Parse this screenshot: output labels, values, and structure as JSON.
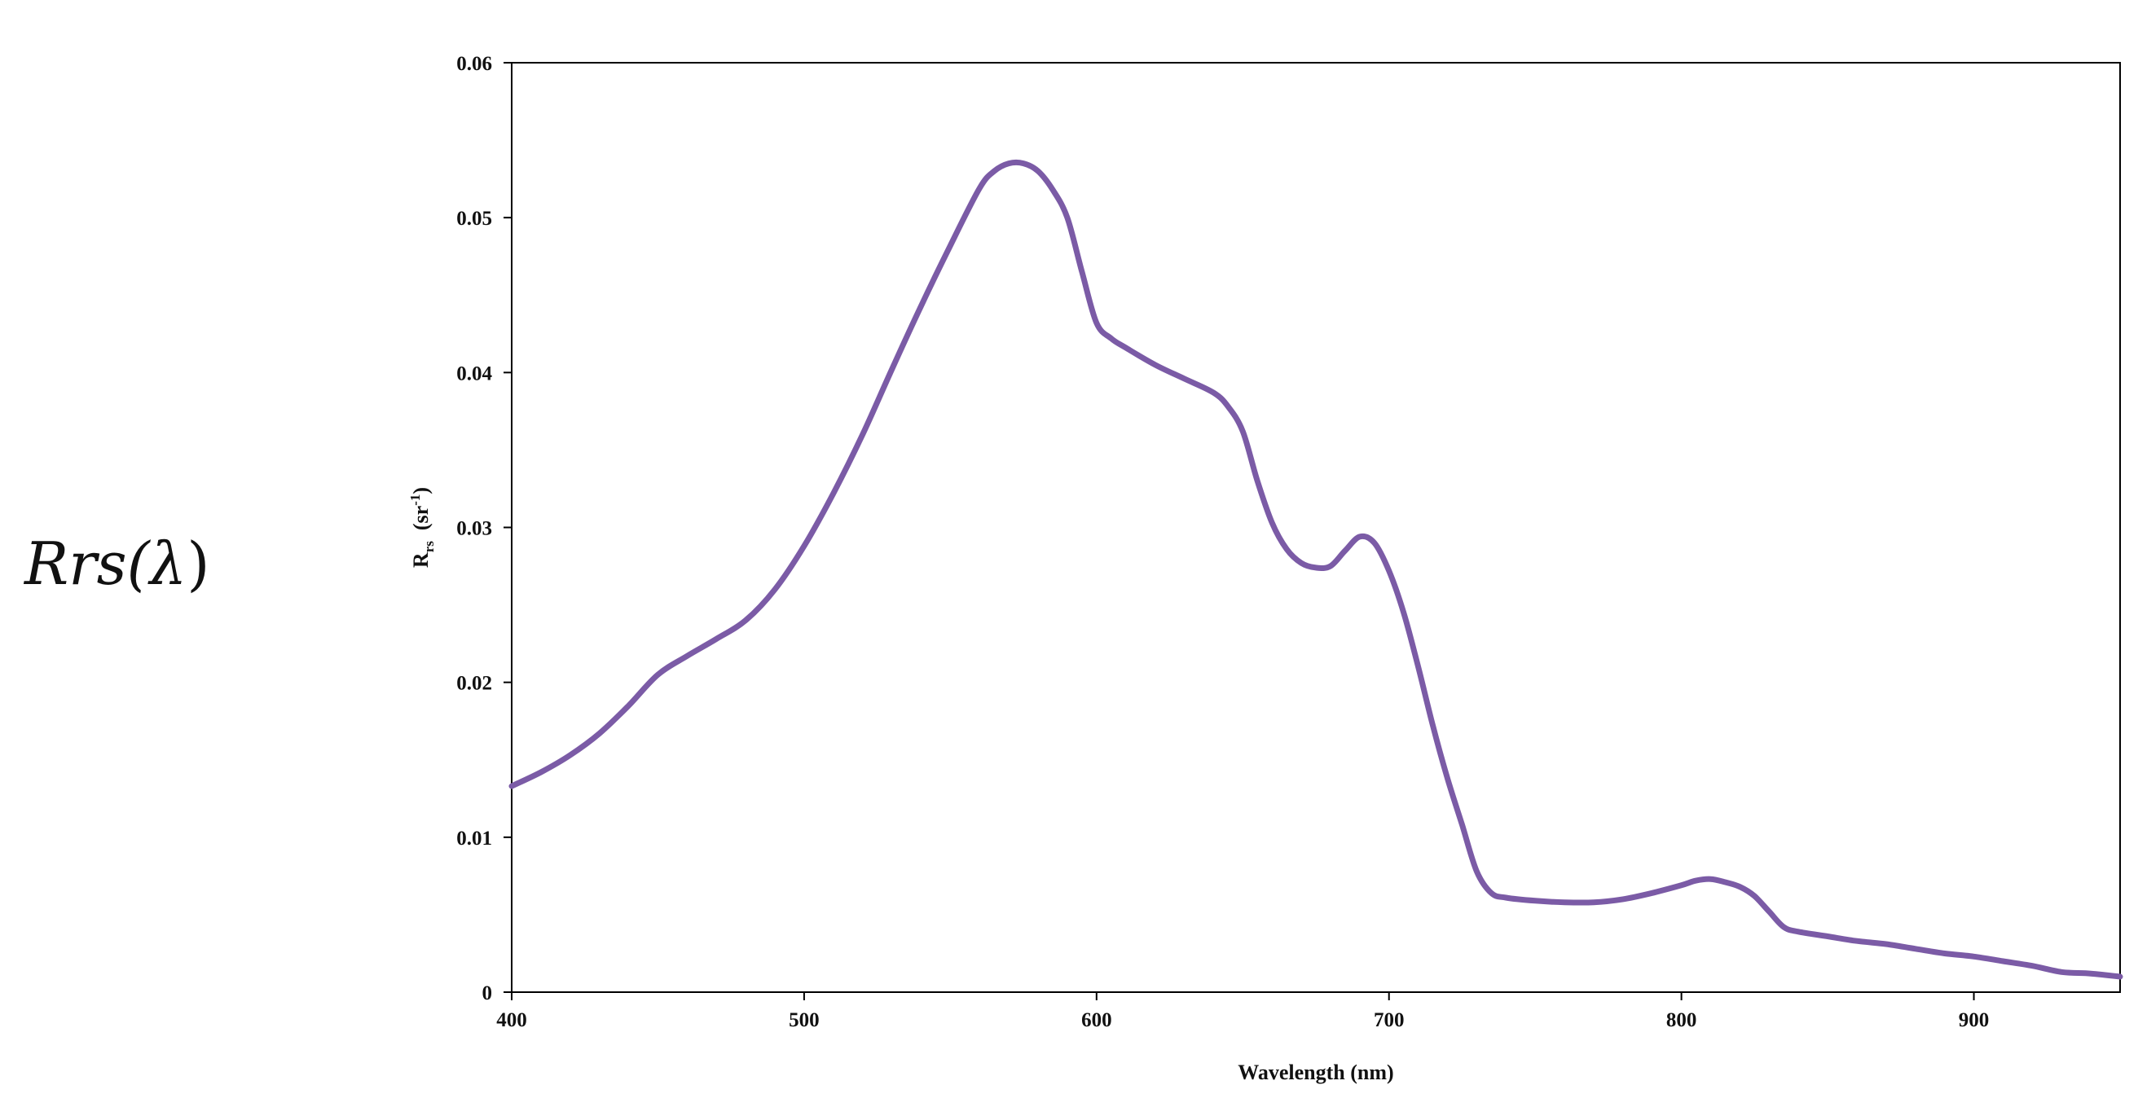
{
  "side_label": {
    "prefix": "Rrs(",
    "symbol": "λ",
    "suffix": ")"
  },
  "colors": {
    "series": "#7B5BA6",
    "axis": "#000000",
    "text": "#111111"
  },
  "chart_data": {
    "type": "line",
    "title": "",
    "xlabel": "Wavelength (nm)",
    "ylabel": {
      "main": "R",
      "sub": "rs",
      "unit_open": "  (sr",
      "unit_sup": "-1",
      "unit_close": ")"
    },
    "xlim": [
      400,
      950
    ],
    "ylim": [
      0,
      0.06
    ],
    "xticks": [
      400,
      500,
      600,
      700,
      800,
      900
    ],
    "yticks": [
      0,
      0.01,
      0.02,
      0.03,
      0.04,
      0.05,
      0.06
    ],
    "ytick_labels": [
      "0",
      "0.01",
      "0.02",
      "0.03",
      "0.04",
      "0.05",
      "0.06"
    ],
    "grid": false,
    "legend": "none",
    "series": [
      {
        "x": [
          400,
          410,
          420,
          430,
          440,
          450,
          460,
          470,
          480,
          490,
          500,
          510,
          520,
          530,
          540,
          550,
          560,
          565,
          570,
          575,
          580,
          585,
          590,
          595,
          600,
          605,
          610,
          620,
          630,
          640,
          645,
          650,
          655,
          660,
          665,
          670,
          675,
          680,
          685,
          690,
          695,
          700,
          705,
          710,
          715,
          720,
          725,
          730,
          735,
          740,
          750,
          760,
          770,
          780,
          790,
          800,
          805,
          810,
          815,
          820,
          825,
          830,
          835,
          840,
          850,
          860,
          870,
          880,
          890,
          900,
          910,
          920,
          930,
          940,
          950
        ],
        "y": [
          0.0133,
          0.0142,
          0.0153,
          0.0167,
          0.0185,
          0.0205,
          0.0217,
          0.0228,
          0.024,
          0.026,
          0.0288,
          0.0322,
          0.036,
          0.0402,
          0.0443,
          0.0482,
          0.0519,
          0.053,
          0.0535,
          0.0535,
          0.053,
          0.0518,
          0.05,
          0.0465,
          0.0432,
          0.0422,
          0.0416,
          0.0405,
          0.0396,
          0.0387,
          0.0378,
          0.0362,
          0.033,
          0.0303,
          0.0286,
          0.0277,
          0.0274,
          0.0275,
          0.0285,
          0.0294,
          0.029,
          0.0272,
          0.0245,
          0.021,
          0.0172,
          0.0138,
          0.0108,
          0.0078,
          0.0064,
          0.0061,
          0.0059,
          0.0058,
          0.0058,
          0.006,
          0.0064,
          0.0069,
          0.0072,
          0.0073,
          0.0071,
          0.0068,
          0.0062,
          0.0052,
          0.0042,
          0.0039,
          0.0036,
          0.0033,
          0.0031,
          0.0028,
          0.0025,
          0.0023,
          0.002,
          0.0017,
          0.0013,
          0.0012,
          0.001
        ]
      }
    ]
  }
}
